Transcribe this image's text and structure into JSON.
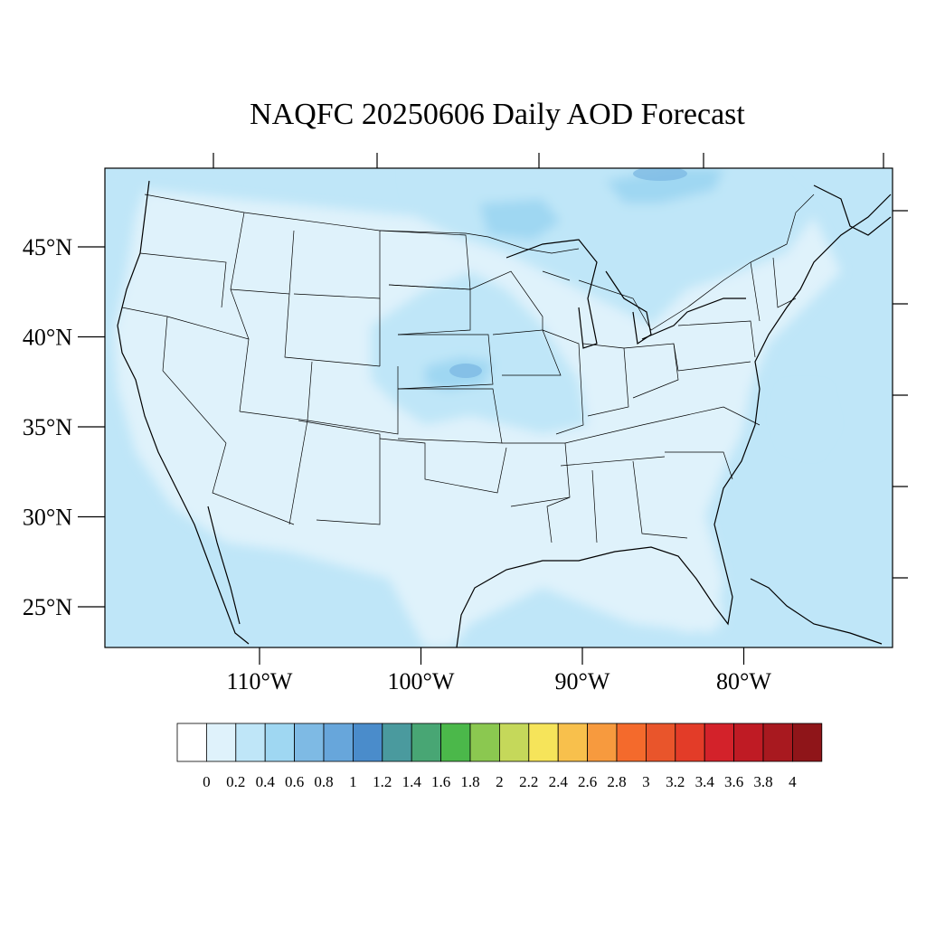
{
  "title": "NAQFC 20250606 Daily AOD Forecast",
  "map": {
    "lat_labels": [
      {
        "lat": 45,
        "text": "45°N"
      },
      {
        "lat": 40,
        "text": "40°N"
      },
      {
        "lat": 35,
        "text": "35°N"
      },
      {
        "lat": 30,
        "text": "30°N"
      },
      {
        "lat": 25,
        "text": "25°N"
      }
    ],
    "lon_labels": [
      {
        "lon": -110,
        "text": "110°W"
      },
      {
        "lon": -100,
        "text": "100°W"
      },
      {
        "lon": -90,
        "text": "90°W"
      },
      {
        "lon": -80,
        "text": "80°W"
      }
    ],
    "field_colors": {
      "aod_0_2": "#dff2fb",
      "aod_0_4": "#bfe6f8",
      "aod_0_6": "#9fd7f2",
      "aod_0_8": "#7ebae4",
      "aod_1_0": "#5b9bd5"
    }
  },
  "colorbar": {
    "colors": [
      "#ffffff",
      "#dff2fb",
      "#bfe6f8",
      "#9fd7f2",
      "#7ebae4",
      "#67a6db",
      "#4a8ccb",
      "#4a9a9e",
      "#48a674",
      "#4bb84a",
      "#8bc850",
      "#c5d85a",
      "#f6e45a",
      "#f8c04c",
      "#f79a3e",
      "#f46a2c",
      "#e9552b",
      "#e33c28",
      "#d3222a",
      "#bf1b24",
      "#a8191f",
      "#8f1519"
    ],
    "labels": [
      "0",
      "0.2",
      "0.4",
      "0.6",
      "0.8",
      "1",
      "1.2",
      "1.4",
      "1.6",
      "1.8",
      "2",
      "2.2",
      "2.4",
      "2.6",
      "2.8",
      "3",
      "3.2",
      "3.4",
      "3.6",
      "3.8",
      "4"
    ]
  }
}
